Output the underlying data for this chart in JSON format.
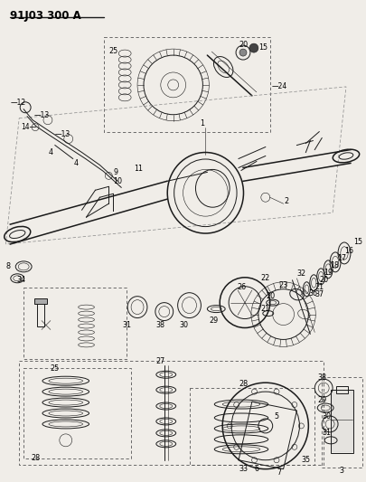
{
  "title": "91J03 300 A",
  "bg_color": "#f0ede8",
  "fig_width": 4.05,
  "fig_height": 5.33,
  "dpi": 100,
  "lc": "#1a1a1a",
  "lc_med": "#2a2a2a",
  "lc_light": "#555555",
  "box_color": "#666666",
  "title_fontsize": 8.5,
  "label_fontsize": 5.8
}
